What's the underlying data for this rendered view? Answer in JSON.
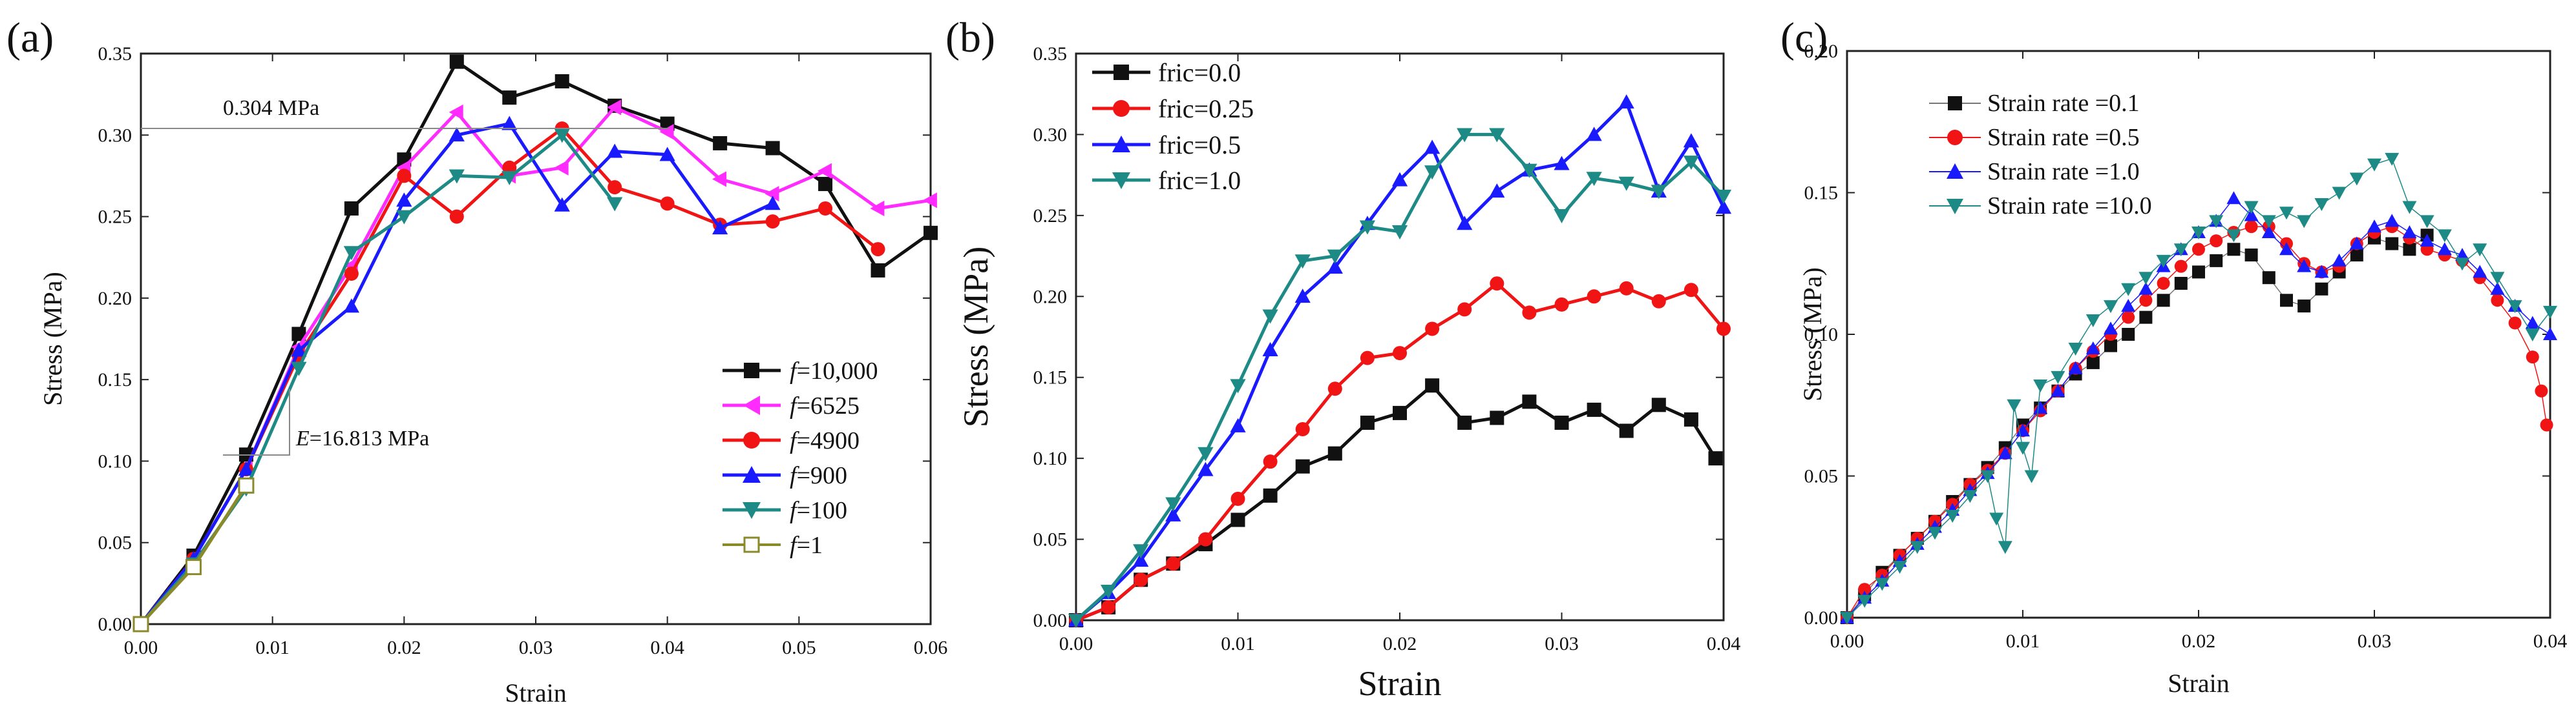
{
  "colors": {
    "black": "#111111",
    "magenta": "#ff2bff",
    "red": "#f01414",
    "blue": "#1a1aff",
    "teal": "#1d8a86",
    "olive": "#8a8a2a",
    "annotation_line": "#888888"
  },
  "chart_data": [
    {
      "panel_label": "(a)",
      "type": "line",
      "xlabel": "Strain",
      "ylabel": "Stress (MPa)",
      "xlim": [
        0,
        0.06
      ],
      "ylim": [
        0,
        0.35
      ],
      "xticks": [
        "0.00",
        "0.01",
        "0.02",
        "0.03",
        "0.04",
        "0.05",
        "0.06"
      ],
      "yticks": [
        "0.00",
        "0.05",
        "0.10",
        "0.15",
        "0.20",
        "0.25",
        "0.30",
        "0.35"
      ],
      "legend_position": "bottom-right",
      "annotations": {
        "peak_label": "0.304 MPa",
        "peak_value": 0.304,
        "modulus_label": "E=16.813 MPa",
        "modulus_letter": "E",
        "modulus_rest": "=16.813 MPa"
      },
      "series": [
        {
          "name": "f=10,000",
          "italic": "f",
          "rest": "=10,000",
          "color_key": "black",
          "marker": "square",
          "x": [
            0,
            0.004,
            0.008,
            0.012,
            0.016,
            0.02,
            0.024,
            0.028,
            0.032,
            0.036,
            0.04,
            0.044,
            0.048,
            0.052,
            0.056,
            0.06
          ],
          "y": [
            0,
            0.042,
            0.104,
            0.178,
            0.255,
            0.285,
            0.345,
            0.323,
            0.333,
            0.318,
            0.307,
            0.295,
            0.292,
            0.27,
            0.217,
            0.24
          ]
        },
        {
          "name": "f=6525",
          "italic": "f",
          "rest": "=6525",
          "color_key": "magenta",
          "marker": "triangle-left",
          "x": [
            0,
            0.004,
            0.008,
            0.012,
            0.016,
            0.02,
            0.024,
            0.028,
            0.032,
            0.036,
            0.04,
            0.044,
            0.048,
            0.052,
            0.056,
            0.06
          ],
          "y": [
            0,
            0.04,
            0.095,
            0.17,
            0.22,
            0.28,
            0.314,
            0.275,
            0.28,
            0.317,
            0.302,
            0.273,
            0.264,
            0.278,
            0.255,
            0.26
          ]
        },
        {
          "name": "f=4900",
          "italic": "f",
          "rest": "=4900",
          "color_key": "red",
          "marker": "circle",
          "x": [
            0,
            0.004,
            0.008,
            0.012,
            0.016,
            0.02,
            0.024,
            0.028,
            0.032,
            0.036,
            0.04,
            0.044,
            0.048,
            0.052,
            0.056
          ],
          "y": [
            0,
            0.04,
            0.095,
            0.165,
            0.215,
            0.275,
            0.25,
            0.28,
            0.304,
            0.268,
            0.258,
            0.245,
            0.247,
            0.255,
            0.23
          ]
        },
        {
          "name": "f=900",
          "italic": "f",
          "rest": "=900",
          "color_key": "blue",
          "marker": "triangle-up",
          "x": [
            0,
            0.004,
            0.008,
            0.012,
            0.016,
            0.02,
            0.024,
            0.028,
            0.032,
            0.036,
            0.04,
            0.044,
            0.048
          ],
          "y": [
            0,
            0.04,
            0.095,
            0.168,
            0.195,
            0.26,
            0.3,
            0.307,
            0.257,
            0.29,
            0.288,
            0.243,
            0.258
          ]
        },
        {
          "name": "f=100",
          "italic": "f",
          "rest": "=100",
          "color_key": "teal",
          "marker": "triangle-down",
          "x": [
            0,
            0.004,
            0.008,
            0.012,
            0.016,
            0.02,
            0.024,
            0.028,
            0.032,
            0.036
          ],
          "y": [
            0,
            0.037,
            0.083,
            0.157,
            0.228,
            0.25,
            0.275,
            0.274,
            0.3,
            0.258
          ]
        },
        {
          "name": "f=1",
          "italic": "f",
          "rest": "=1",
          "color_key": "olive",
          "marker": "square-open",
          "x": [
            0,
            0.004,
            0.008
          ],
          "y": [
            0,
            0.035,
            0.085
          ]
        }
      ]
    },
    {
      "panel_label": "(b)",
      "type": "line",
      "xlabel": "Strain",
      "ylabel": "Stress (MPa)",
      "xlim": [
        0,
        0.04
      ],
      "ylim": [
        0,
        0.35
      ],
      "xticks": [
        "0.00",
        "0.01",
        "0.02",
        "0.03",
        "0.04"
      ],
      "yticks": [
        "0.00",
        "0.05",
        "0.10",
        "0.15",
        "0.20",
        "0.25",
        "0.30",
        "0.35"
      ],
      "legend_position": "top-left",
      "series": [
        {
          "name": "fric=0.0",
          "color_key": "black",
          "marker": "square",
          "x": [
            0,
            0.002,
            0.004,
            0.006,
            0.008,
            0.01,
            0.012,
            0.014,
            0.016,
            0.018,
            0.02,
            0.022,
            0.024,
            0.026,
            0.028,
            0.03,
            0.032,
            0.034,
            0.036,
            0.038,
            0.0395
          ],
          "y": [
            0,
            0.008,
            0.025,
            0.035,
            0.047,
            0.062,
            0.077,
            0.095,
            0.103,
            0.122,
            0.128,
            0.145,
            0.122,
            0.125,
            0.135,
            0.122,
            0.13,
            0.117,
            0.133,
            0.124,
            0.1
          ]
        },
        {
          "name": "fric=0.25",
          "color_key": "red",
          "marker": "circle",
          "x": [
            0,
            0.002,
            0.004,
            0.006,
            0.008,
            0.01,
            0.012,
            0.014,
            0.016,
            0.018,
            0.02,
            0.022,
            0.024,
            0.026,
            0.028,
            0.03,
            0.032,
            0.034,
            0.036,
            0.038,
            0.04
          ],
          "y": [
            0,
            0.008,
            0.025,
            0.035,
            0.05,
            0.075,
            0.098,
            0.118,
            0.143,
            0.162,
            0.165,
            0.18,
            0.192,
            0.208,
            0.19,
            0.195,
            0.2,
            0.205,
            0.197,
            0.204,
            0.18
          ]
        },
        {
          "name": "fric=0.5",
          "color_key": "blue",
          "marker": "triangle-up",
          "x": [
            0,
            0.002,
            0.004,
            0.006,
            0.008,
            0.01,
            0.012,
            0.014,
            0.016,
            0.018,
            0.02,
            0.022,
            0.024,
            0.026,
            0.028,
            0.03,
            0.032,
            0.034,
            0.036,
            0.038,
            0.04
          ],
          "y": [
            0,
            0.017,
            0.037,
            0.065,
            0.093,
            0.12,
            0.167,
            0.2,
            0.218,
            0.245,
            0.272,
            0.292,
            0.245,
            0.265,
            0.278,
            0.282,
            0.3,
            0.32,
            0.265,
            0.296,
            0.255
          ]
        },
        {
          "name": "fric=1.0",
          "color_key": "teal",
          "marker": "triangle-down",
          "x": [
            0,
            0.002,
            0.004,
            0.006,
            0.008,
            0.01,
            0.012,
            0.014,
            0.016,
            0.018,
            0.02,
            0.022,
            0.024,
            0.026,
            0.028,
            0.03,
            0.032,
            0.034,
            0.036,
            0.038,
            0.04
          ],
          "y": [
            0,
            0.018,
            0.043,
            0.072,
            0.103,
            0.145,
            0.188,
            0.222,
            0.225,
            0.243,
            0.24,
            0.277,
            0.3,
            0.3,
            0.278,
            0.25,
            0.273,
            0.27,
            0.265,
            0.283,
            0.262
          ]
        }
      ]
    },
    {
      "panel_label": "(c)",
      "type": "scatter",
      "xlabel": "Strain",
      "ylabel": "Stress (MPa)",
      "xlim": [
        0,
        0.04
      ],
      "ylim": [
        0,
        0.2
      ],
      "xticks": [
        "0.00",
        "0.01",
        "0.02",
        "0.03",
        "0.04"
      ],
      "yticks": [
        "0.00",
        "0.05",
        "0.10",
        "0.15",
        "0.20"
      ],
      "legend_position": "top-left",
      "series": [
        {
          "name": "Strain rate =0.1",
          "color_key": "black",
          "marker": "square",
          "x": [
            0,
            0.001,
            0.002,
            0.003,
            0.004,
            0.005,
            0.006,
            0.007,
            0.008,
            0.009,
            0.01,
            0.011,
            0.012,
            0.013,
            0.014,
            0.015,
            0.016,
            0.017,
            0.018,
            0.019,
            0.02,
            0.021,
            0.022,
            0.023,
            0.024,
            0.025,
            0.026,
            0.027,
            0.028,
            0.029,
            0.03,
            0.031,
            0.032,
            0.033
          ],
          "y": [
            0,
            0.008,
            0.016,
            0.022,
            0.028,
            0.034,
            0.041,
            0.047,
            0.053,
            0.06,
            0.068,
            0.074,
            0.08,
            0.086,
            0.09,
            0.096,
            0.1,
            0.106,
            0.112,
            0.118,
            0.122,
            0.126,
            0.13,
            0.128,
            0.12,
            0.112,
            0.11,
            0.116,
            0.122,
            0.128,
            0.134,
            0.132,
            0.13,
            0.135
          ]
        },
        {
          "name": "Strain rate =0.5",
          "color_key": "red",
          "marker": "circle",
          "x": [
            0,
            0.001,
            0.002,
            0.003,
            0.004,
            0.005,
            0.006,
            0.007,
            0.008,
            0.009,
            0.01,
            0.011,
            0.012,
            0.013,
            0.014,
            0.015,
            0.016,
            0.017,
            0.018,
            0.019,
            0.02,
            0.021,
            0.022,
            0.023,
            0.024,
            0.025,
            0.026,
            0.027,
            0.028,
            0.029,
            0.03,
            0.031,
            0.032,
            0.033,
            0.034,
            0.035,
            0.036,
            0.037,
            0.038,
            0.039,
            0.0395,
            0.0398
          ],
          "y": [
            0,
            0.01,
            0.015,
            0.022,
            0.028,
            0.034,
            0.04,
            0.047,
            0.052,
            0.058,
            0.066,
            0.073,
            0.08,
            0.088,
            0.094,
            0.1,
            0.106,
            0.112,
            0.118,
            0.124,
            0.13,
            0.133,
            0.136,
            0.138,
            0.138,
            0.132,
            0.125,
            0.122,
            0.124,
            0.132,
            0.136,
            0.138,
            0.134,
            0.13,
            0.128,
            0.126,
            0.12,
            0.112,
            0.104,
            0.092,
            0.08,
            0.068
          ]
        },
        {
          "name": "Strain rate =1.0",
          "color_key": "blue",
          "marker": "triangle-up",
          "x": [
            0,
            0.001,
            0.002,
            0.003,
            0.004,
            0.005,
            0.006,
            0.007,
            0.008,
            0.009,
            0.01,
            0.011,
            0.012,
            0.013,
            0.014,
            0.015,
            0.016,
            0.017,
            0.018,
            0.019,
            0.02,
            0.021,
            0.022,
            0.023,
            0.024,
            0.025,
            0.026,
            0.027,
            0.028,
            0.029,
            0.03,
            0.031,
            0.032,
            0.033,
            0.034,
            0.035,
            0.036,
            0.037,
            0.038,
            0.039,
            0.04
          ],
          "y": [
            0,
            0.007,
            0.013,
            0.02,
            0.026,
            0.032,
            0.038,
            0.045,
            0.051,
            0.058,
            0.066,
            0.074,
            0.08,
            0.088,
            0.095,
            0.102,
            0.11,
            0.116,
            0.124,
            0.13,
            0.136,
            0.14,
            0.148,
            0.142,
            0.136,
            0.13,
            0.124,
            0.122,
            0.126,
            0.132,
            0.138,
            0.14,
            0.136,
            0.133,
            0.13,
            0.128,
            0.122,
            0.116,
            0.11,
            0.104,
            0.1
          ]
        },
        {
          "name": "Strain rate =10.0",
          "color_key": "teal",
          "marker": "triangle-down",
          "x": [
            0,
            0.001,
            0.002,
            0.003,
            0.004,
            0.005,
            0.006,
            0.007,
            0.008,
            0.0085,
            0.009,
            0.0095,
            0.01,
            0.0105,
            0.011,
            0.012,
            0.013,
            0.014,
            0.015,
            0.016,
            0.017,
            0.018,
            0.019,
            0.02,
            0.021,
            0.022,
            0.023,
            0.024,
            0.025,
            0.026,
            0.027,
            0.028,
            0.029,
            0.03,
            0.031,
            0.032,
            0.033,
            0.034,
            0.035,
            0.036,
            0.037,
            0.038,
            0.039,
            0.04
          ],
          "y": [
            0,
            0.006,
            0.012,
            0.018,
            0.025,
            0.03,
            0.036,
            0.043,
            0.05,
            0.035,
            0.025,
            0.075,
            0.06,
            0.05,
            0.082,
            0.085,
            0.095,
            0.105,
            0.11,
            0.116,
            0.12,
            0.126,
            0.13,
            0.136,
            0.14,
            0.135,
            0.145,
            0.14,
            0.143,
            0.14,
            0.146,
            0.15,
            0.155,
            0.16,
            0.162,
            0.145,
            0.14,
            0.135,
            0.125,
            0.13,
            0.12,
            0.11,
            0.1,
            0.108
          ]
        }
      ]
    }
  ]
}
